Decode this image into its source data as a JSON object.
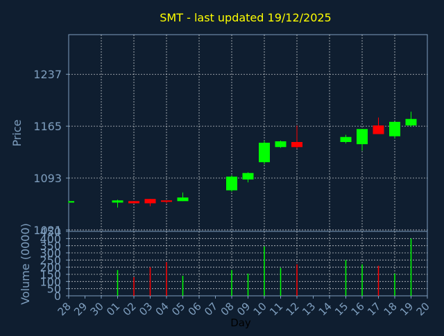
{
  "title": "SMT - last updated 19/12/2025",
  "colors": {
    "background": "#0f1e30",
    "axis": "#7f9fbf",
    "grid": "#ffffff",
    "title": "#ffff00",
    "up": "#00ff00",
    "down": "#ff0000"
  },
  "chart_data": [
    {
      "type": "candlestick",
      "ylabel": "Price",
      "ylim": [
        1019,
        1292
      ],
      "yticks": [
        1021,
        1093,
        1165,
        1237
      ],
      "x": [
        "28",
        "29",
        "30",
        "01",
        "02",
        "03",
        "04",
        "05",
        "06",
        "07",
        "08",
        "09",
        "10",
        "11",
        "12",
        "13",
        "14",
        "15",
        "16",
        "17",
        "18",
        "19",
        "20"
      ],
      "candles": [
        {
          "x": "28",
          "open": 1059,
          "high": 1061,
          "low": 1058,
          "close": 1061
        },
        {
          "x": "01",
          "open": 1059,
          "high": 1063,
          "low": 1052,
          "close": 1062
        },
        {
          "x": "02",
          "open": 1061,
          "high": 1061,
          "low": 1058,
          "close": 1058
        },
        {
          "x": "03",
          "open": 1064,
          "high": 1064,
          "low": 1054,
          "close": 1058
        },
        {
          "x": "04",
          "open": 1062,
          "high": 1062,
          "low": 1058,
          "close": 1060
        },
        {
          "x": "05",
          "open": 1061,
          "high": 1073,
          "low": 1061,
          "close": 1066
        },
        {
          "x": "08",
          "open": 1076,
          "high": 1097,
          "low": 1074,
          "close": 1095
        },
        {
          "x": "09",
          "open": 1091,
          "high": 1101,
          "low": 1087,
          "close": 1100
        },
        {
          "x": "10",
          "open": 1115,
          "high": 1145,
          "low": 1112,
          "close": 1142
        },
        {
          "x": "11",
          "open": 1136,
          "high": 1145,
          "low": 1135,
          "close": 1144
        },
        {
          "x": "12",
          "open": 1143,
          "high": 1166,
          "low": 1134,
          "close": 1136
        },
        {
          "x": "15",
          "open": 1143,
          "high": 1153,
          "low": 1141,
          "close": 1150
        },
        {
          "x": "16",
          "open": 1140,
          "high": 1161,
          "low": 1131,
          "close": 1161
        },
        {
          "x": "17",
          "open": 1166,
          "high": 1177,
          "low": 1155,
          "close": 1154
        },
        {
          "x": "18",
          "open": 1151,
          "high": 1171,
          "low": 1148,
          "close": 1171
        },
        {
          "x": "19",
          "open": 1166,
          "high": 1185,
          "low": 1164,
          "close": 1175
        }
      ]
    },
    {
      "type": "bar",
      "xlabel": "Day",
      "ylabel": "Volume (0000)",
      "ylim": [
        0,
        450
      ],
      "yticks": [
        0,
        50,
        100,
        150,
        200,
        250,
        300,
        350,
        400,
        450
      ],
      "x": [
        "28",
        "29",
        "30",
        "01",
        "02",
        "03",
        "04",
        "05",
        "06",
        "07",
        "08",
        "09",
        "10",
        "11",
        "12",
        "13",
        "14",
        "15",
        "16",
        "17",
        "18",
        "19",
        "20"
      ],
      "bars": [
        {
          "x": "01",
          "value": 180,
          "direction": "up"
        },
        {
          "x": "02",
          "value": 130,
          "direction": "down"
        },
        {
          "x": "03",
          "value": 200,
          "direction": "down"
        },
        {
          "x": "04",
          "value": 235,
          "direction": "down"
        },
        {
          "x": "05",
          "value": 140,
          "direction": "up"
        },
        {
          "x": "08",
          "value": 180,
          "direction": "up"
        },
        {
          "x": "09",
          "value": 155,
          "direction": "up"
        },
        {
          "x": "10",
          "value": 345,
          "direction": "up"
        },
        {
          "x": "11",
          "value": 195,
          "direction": "up"
        },
        {
          "x": "12",
          "value": 220,
          "direction": "down"
        },
        {
          "x": "15",
          "value": 250,
          "direction": "up"
        },
        {
          "x": "16",
          "value": 220,
          "direction": "up"
        },
        {
          "x": "17",
          "value": 210,
          "direction": "down"
        },
        {
          "x": "18",
          "value": 155,
          "direction": "up"
        },
        {
          "x": "19",
          "value": 400,
          "direction": "up"
        }
      ]
    }
  ]
}
